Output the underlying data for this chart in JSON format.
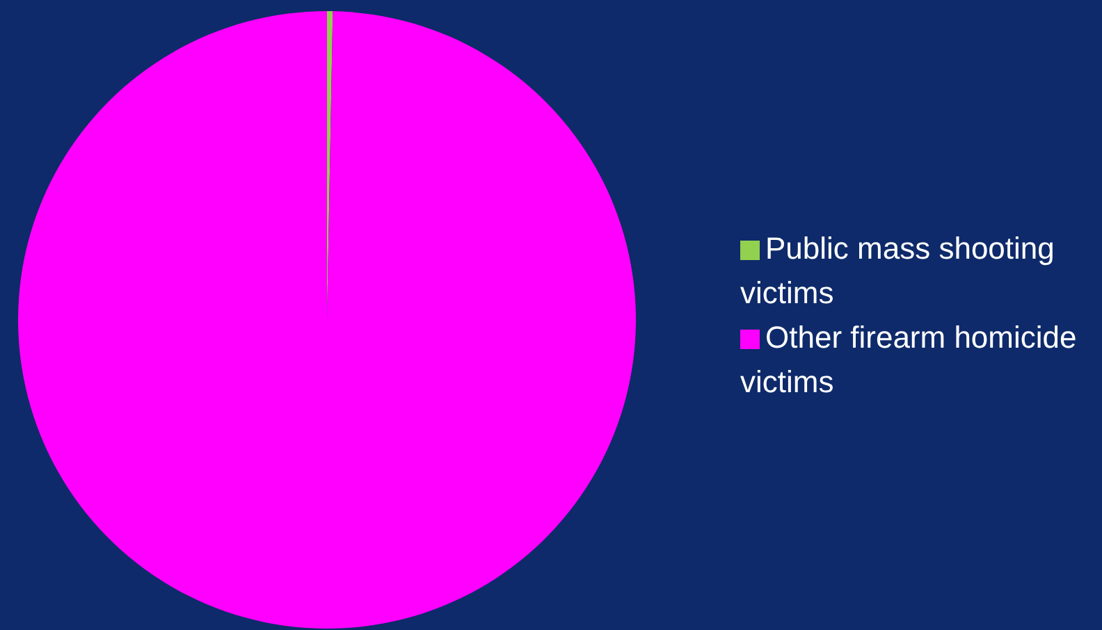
{
  "chart_data": {
    "type": "pie",
    "categories": [
      "Public mass shooting victims",
      "Other firearm homicide victims"
    ],
    "values": [
      0.3,
      99.7
    ],
    "colors": [
      "#92d050",
      "#ff00ff"
    ],
    "legend": "right"
  }
}
